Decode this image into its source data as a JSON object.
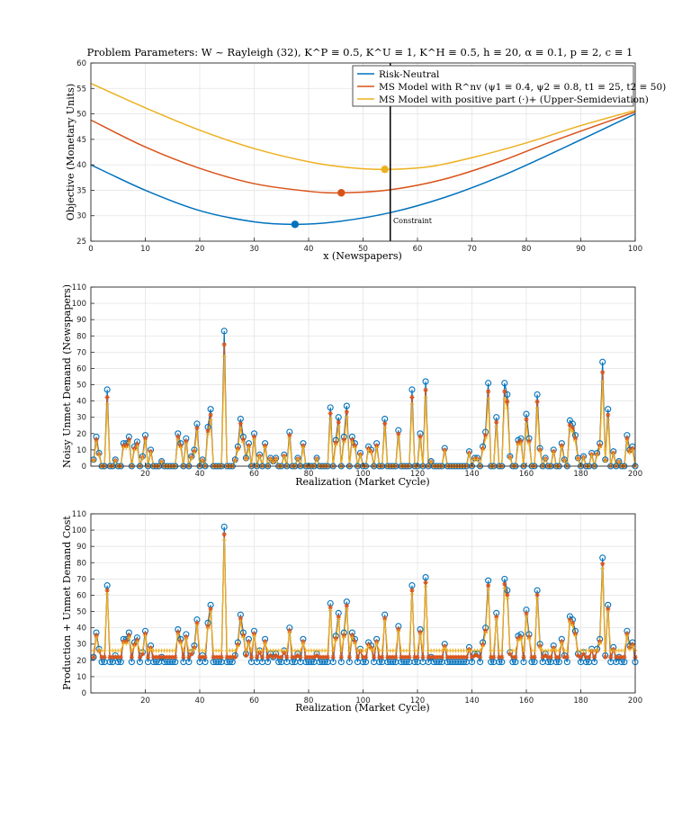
{
  "colors": {
    "rn": "#0072BD",
    "msr": "#D95319",
    "msp": "#EDB120",
    "constraint": "#000000"
  },
  "chart_data": [
    {
      "type": "line",
      "title": "Problem Parameters: W ~ Rayleigh (32), K^P ≡ 0.5, K^U ≡ 1, K^H ≡ 0.5, h ≡ 20, α ≡ 0.1, p ≡ 2, c ≡ 1",
      "xlabel": "x (Newspapers)",
      "ylabel": "Objective (Monetary Units)",
      "xlim": [
        0,
        100
      ],
      "ylim": [
        25,
        60
      ],
      "xticks": [
        0,
        10,
        20,
        30,
        40,
        50,
        60,
        70,
        80,
        90,
        100
      ],
      "yticks": [
        25,
        30,
        35,
        40,
        45,
        50,
        55,
        60
      ],
      "legend_position": "top-right",
      "series": [
        {
          "name": "Risk-Neutral",
          "key": "rn",
          "x": [
            0,
            10,
            20,
            30,
            37.5,
            45,
            55,
            65,
            75,
            85,
            100
          ],
          "y": [
            40.0,
            35.0,
            31.0,
            28.8,
            28.3,
            28.8,
            30.6,
            33.6,
            37.6,
            42.4,
            50.0
          ],
          "optimum": {
            "x": 37.5,
            "y": 28.3
          }
        },
        {
          "name": "MS Model with R^nv (ψ1 ≡ 0.4, ψ2 ≡ 0.8, t1 ≡ 25, t2 ≡ 50)",
          "key": "msr",
          "x": [
            0,
            10,
            20,
            30,
            40,
            46,
            55,
            65,
            75,
            85,
            100
          ],
          "y": [
            48.8,
            43.5,
            39.3,
            36.3,
            34.8,
            34.5,
            35.1,
            37.2,
            40.6,
            44.7,
            50.4
          ],
          "optimum": {
            "x": 46,
            "y": 34.5
          }
        },
        {
          "name": "MS Model with positive part (·)+ (Upper-Semideviation)",
          "key": "msp",
          "x": [
            0,
            10,
            20,
            30,
            40,
            47,
            54,
            62,
            70,
            80,
            90,
            100
          ],
          "y": [
            56.0,
            51.2,
            46.8,
            43.2,
            40.6,
            39.5,
            39.1,
            39.6,
            41.4,
            44.3,
            47.7,
            50.7
          ],
          "optimum": {
            "x": 54,
            "y": 39.1
          }
        }
      ],
      "constraint": {
        "x": 55,
        "label": "Constraint"
      }
    },
    {
      "type": "line",
      "xlabel": "Realization (Market Cycle)",
      "ylabel": "Noisy Unmet Demand (Newspapers)",
      "xlim": [
        0,
        200
      ],
      "ylim": [
        0,
        110
      ],
      "xticks": [
        20,
        40,
        60,
        80,
        100,
        120,
        140,
        160,
        180,
        200
      ],
      "yticks": [
        0,
        10,
        20,
        30,
        40,
        50,
        60,
        70,
        80,
        90,
        100,
        110
      ],
      "base": 0,
      "peaks": [
        {
          "x": 1,
          "v": 4
        },
        {
          "x": 2,
          "v": 18
        },
        {
          "x": 3,
          "v": 8
        },
        {
          "x": 6,
          "v": 47
        },
        {
          "x": 9,
          "v": 4
        },
        {
          "x": 12,
          "v": 14
        },
        {
          "x": 13,
          "v": 14
        },
        {
          "x": 14,
          "v": 18
        },
        {
          "x": 16,
          "v": 12
        },
        {
          "x": 17,
          "v": 15
        },
        {
          "x": 19,
          "v": 6
        },
        {
          "x": 20,
          "v": 19
        },
        {
          "x": 22,
          "v": 10
        },
        {
          "x": 26,
          "v": 3
        },
        {
          "x": 32,
          "v": 20
        },
        {
          "x": 33,
          "v": 14
        },
        {
          "x": 35,
          "v": 17
        },
        {
          "x": 37,
          "v": 6
        },
        {
          "x": 38,
          "v": 10
        },
        {
          "x": 39,
          "v": 26
        },
        {
          "x": 41,
          "v": 4
        },
        {
          "x": 43,
          "v": 24
        },
        {
          "x": 44,
          "v": 35
        },
        {
          "x": 49,
          "v": 83
        },
        {
          "x": 53,
          "v": 4
        },
        {
          "x": 54,
          "v": 12
        },
        {
          "x": 55,
          "v": 29
        },
        {
          "x": 56,
          "v": 18
        },
        {
          "x": 57,
          "v": 5
        },
        {
          "x": 58,
          "v": 14
        },
        {
          "x": 60,
          "v": 20
        },
        {
          "x": 62,
          "v": 7
        },
        {
          "x": 64,
          "v": 14
        },
        {
          "x": 66,
          "v": 5
        },
        {
          "x": 67,
          "v": 3
        },
        {
          "x": 68,
          "v": 5
        },
        {
          "x": 71,
          "v": 7
        },
        {
          "x": 73,
          "v": 21
        },
        {
          "x": 76,
          "v": 5
        },
        {
          "x": 78,
          "v": 14
        },
        {
          "x": 83,
          "v": 5
        },
        {
          "x": 88,
          "v": 36
        },
        {
          "x": 90,
          "v": 16
        },
        {
          "x": 91,
          "v": 30
        },
        {
          "x": 93,
          "v": 18
        },
        {
          "x": 94,
          "v": 37
        },
        {
          "x": 96,
          "v": 18
        },
        {
          "x": 97,
          "v": 14
        },
        {
          "x": 99,
          "v": 8
        },
        {
          "x": 102,
          "v": 12
        },
        {
          "x": 103,
          "v": 10
        },
        {
          "x": 105,
          "v": 14
        },
        {
          "x": 108,
          "v": 29
        },
        {
          "x": 113,
          "v": 22
        },
        {
          "x": 118,
          "v": 47
        },
        {
          "x": 121,
          "v": 20
        },
        {
          "x": 123,
          "v": 52
        },
        {
          "x": 125,
          "v": 3
        },
        {
          "x": 130,
          "v": 11
        },
        {
          "x": 139,
          "v": 9
        },
        {
          "x": 141,
          "v": 5
        },
        {
          "x": 142,
          "v": 5
        },
        {
          "x": 144,
          "v": 12
        },
        {
          "x": 145,
          "v": 21
        },
        {
          "x": 146,
          "v": 51
        },
        {
          "x": 149,
          "v": 30
        },
        {
          "x": 152,
          "v": 51
        },
        {
          "x": 153,
          "v": 44
        },
        {
          "x": 154,
          "v": 6
        },
        {
          "x": 157,
          "v": 16
        },
        {
          "x": 158,
          "v": 17
        },
        {
          "x": 160,
          "v": 32
        },
        {
          "x": 161,
          "v": 17
        },
        {
          "x": 164,
          "v": 44
        },
        {
          "x": 165,
          "v": 11
        },
        {
          "x": 167,
          "v": 5
        },
        {
          "x": 170,
          "v": 10
        },
        {
          "x": 173,
          "v": 14
        },
        {
          "x": 174,
          "v": 4
        },
        {
          "x": 176,
          "v": 28
        },
        {
          "x": 177,
          "v": 26
        },
        {
          "x": 178,
          "v": 19
        },
        {
          "x": 179,
          "v": 5
        },
        {
          "x": 181,
          "v": 6
        },
        {
          "x": 184,
          "v": 8
        },
        {
          "x": 186,
          "v": 8
        },
        {
          "x": 187,
          "v": 14
        },
        {
          "x": 188,
          "v": 64
        },
        {
          "x": 189,
          "v": 4
        },
        {
          "x": 190,
          "v": 35
        },
        {
          "x": 192,
          "v": 9
        },
        {
          "x": 194,
          "v": 3
        },
        {
          "x": 197,
          "v": 19
        },
        {
          "x": 198,
          "v": 10
        },
        {
          "x": 199,
          "v": 12
        }
      ]
    },
    {
      "type": "line",
      "xlabel": "Realization (Market Cycle)",
      "ylabel": "Production + Unmet Demand Cost",
      "xlim": [
        0,
        200
      ],
      "ylim": [
        0,
        110
      ],
      "xticks": [
        20,
        40,
        60,
        80,
        100,
        120,
        140,
        160,
        180,
        200
      ],
      "yticks": [
        0,
        10,
        20,
        30,
        40,
        50,
        60,
        70,
        80,
        90,
        100,
        110
      ],
      "base": 19,
      "peaks": [
        {
          "x": 1,
          "v": 22
        },
        {
          "x": 2,
          "v": 37
        },
        {
          "x": 3,
          "v": 27
        },
        {
          "x": 6,
          "v": 66
        },
        {
          "x": 9,
          "v": 23
        },
        {
          "x": 12,
          "v": 33
        },
        {
          "x": 13,
          "v": 33
        },
        {
          "x": 14,
          "v": 37
        },
        {
          "x": 16,
          "v": 31
        },
        {
          "x": 17,
          "v": 34
        },
        {
          "x": 19,
          "v": 25
        },
        {
          "x": 20,
          "v": 38
        },
        {
          "x": 22,
          "v": 29
        },
        {
          "x": 26,
          "v": 22
        },
        {
          "x": 32,
          "v": 39
        },
        {
          "x": 33,
          "v": 33
        },
        {
          "x": 35,
          "v": 36
        },
        {
          "x": 37,
          "v": 25
        },
        {
          "x": 38,
          "v": 29
        },
        {
          "x": 39,
          "v": 45
        },
        {
          "x": 41,
          "v": 23
        },
        {
          "x": 43,
          "v": 43
        },
        {
          "x": 44,
          "v": 54
        },
        {
          "x": 49,
          "v": 102
        },
        {
          "x": 53,
          "v": 23
        },
        {
          "x": 54,
          "v": 31
        },
        {
          "x": 55,
          "v": 48
        },
        {
          "x": 56,
          "v": 37
        },
        {
          "x": 57,
          "v": 24
        },
        {
          "x": 58,
          "v": 33
        },
        {
          "x": 60,
          "v": 38
        },
        {
          "x": 62,
          "v": 26
        },
        {
          "x": 64,
          "v": 33
        },
        {
          "x": 66,
          "v": 24
        },
        {
          "x": 67,
          "v": 22
        },
        {
          "x": 68,
          "v": 24
        },
        {
          "x": 71,
          "v": 26
        },
        {
          "x": 73,
          "v": 40
        },
        {
          "x": 76,
          "v": 24
        },
        {
          "x": 78,
          "v": 33
        },
        {
          "x": 83,
          "v": 24
        },
        {
          "x": 88,
          "v": 55
        },
        {
          "x": 90,
          "v": 35
        },
        {
          "x": 91,
          "v": 49
        },
        {
          "x": 93,
          "v": 37
        },
        {
          "x": 94,
          "v": 56
        },
        {
          "x": 96,
          "v": 37
        },
        {
          "x": 97,
          "v": 33
        },
        {
          "x": 99,
          "v": 27
        },
        {
          "x": 102,
          "v": 31
        },
        {
          "x": 103,
          "v": 29
        },
        {
          "x": 105,
          "v": 33
        },
        {
          "x": 108,
          "v": 48
        },
        {
          "x": 113,
          "v": 41
        },
        {
          "x": 118,
          "v": 66
        },
        {
          "x": 121,
          "v": 39
        },
        {
          "x": 123,
          "v": 71
        },
        {
          "x": 125,
          "v": 22
        },
        {
          "x": 130,
          "v": 30
        },
        {
          "x": 139,
          "v": 28
        },
        {
          "x": 141,
          "v": 24
        },
        {
          "x": 142,
          "v": 24
        },
        {
          "x": 144,
          "v": 31
        },
        {
          "x": 145,
          "v": 40
        },
        {
          "x": 146,
          "v": 69
        },
        {
          "x": 149,
          "v": 49
        },
        {
          "x": 152,
          "v": 70
        },
        {
          "x": 153,
          "v": 63
        },
        {
          "x": 154,
          "v": 25
        },
        {
          "x": 157,
          "v": 35
        },
        {
          "x": 158,
          "v": 36
        },
        {
          "x": 160,
          "v": 51
        },
        {
          "x": 161,
          "v": 36
        },
        {
          "x": 164,
          "v": 63
        },
        {
          "x": 165,
          "v": 30
        },
        {
          "x": 167,
          "v": 24
        },
        {
          "x": 170,
          "v": 29
        },
        {
          "x": 173,
          "v": 33
        },
        {
          "x": 174,
          "v": 23
        },
        {
          "x": 176,
          "v": 47
        },
        {
          "x": 177,
          "v": 45
        },
        {
          "x": 178,
          "v": 38
        },
        {
          "x": 179,
          "v": 24
        },
        {
          "x": 181,
          "v": 25
        },
        {
          "x": 184,
          "v": 27
        },
        {
          "x": 186,
          "v": 27
        },
        {
          "x": 187,
          "v": 33
        },
        {
          "x": 188,
          "v": 83
        },
        {
          "x": 189,
          "v": 23
        },
        {
          "x": 190,
          "v": 54
        },
        {
          "x": 192,
          "v": 28
        },
        {
          "x": 194,
          "v": 22
        },
        {
          "x": 197,
          "v": 38
        },
        {
          "x": 198,
          "v": 29
        },
        {
          "x": 199,
          "v": 31
        }
      ]
    }
  ]
}
